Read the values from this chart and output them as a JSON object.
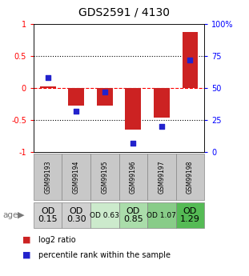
{
  "title": "GDS2591 / 4130",
  "samples": [
    "GSM99193",
    "GSM99194",
    "GSM99195",
    "GSM99196",
    "GSM99197",
    "GSM99198"
  ],
  "log2_ratio": [
    0.02,
    -0.27,
    -0.28,
    -0.65,
    -0.46,
    0.88
  ],
  "percentile_rank": [
    58,
    32,
    47,
    7,
    20,
    72
  ],
  "bar_color": "#cc2222",
  "dot_color": "#2222cc",
  "age_labels": [
    "OD\n0.15",
    "OD\n0.30",
    "OD 0.63",
    "OD\n0.85",
    "OD 1.07",
    "OD\n1.29"
  ],
  "age_bg_colors": [
    "#d0d0d0",
    "#d0d0d0",
    "#cceacc",
    "#aaddaa",
    "#88cc88",
    "#55bb55"
  ],
  "age_fontsizes": [
    8,
    8,
    6.5,
    8,
    6.5,
    8
  ],
  "sample_bg_color": "#c8c8c8",
  "legend_labels": [
    "log2 ratio",
    "percentile rank within the sample"
  ]
}
